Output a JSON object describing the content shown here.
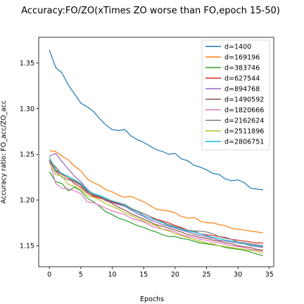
{
  "chart_data": {
    "type": "line",
    "title": "Accuracy:FO/ZO(xTimes ZO worse than FO,epoch 15-50)",
    "xlabel": "Epochs",
    "ylabel": "Accuracy ratio: FO_acc/ZO_acc",
    "xlim": [
      -1.7,
      35.7
    ],
    "ylim": [
      1.127,
      1.378
    ],
    "xticks": [
      "0",
      "5",
      "10",
      "15",
      "20",
      "25",
      "30",
      "35"
    ],
    "yticks": [
      "1.15",
      "1.20",
      "1.25",
      "1.30",
      "1.35"
    ],
    "legend_position": "top-right",
    "grid": false,
    "x": [
      0,
      1,
      2,
      3,
      4,
      5,
      6,
      7,
      8,
      9,
      10,
      11,
      12,
      13,
      14,
      15,
      16,
      17,
      18,
      19,
      20,
      21,
      22,
      23,
      24,
      25,
      26,
      27,
      28,
      29,
      30,
      31,
      32,
      33,
      34
    ],
    "series": [
      {
        "name": "d=1400",
        "color": "#1f77b4",
        "values": [
          1.364,
          1.345,
          1.339,
          1.326,
          1.316,
          1.306,
          1.302,
          1.297,
          1.289,
          1.282,
          1.277,
          1.276,
          1.277,
          1.27,
          1.266,
          1.263,
          1.259,
          1.255,
          1.253,
          1.25,
          1.251,
          1.245,
          1.243,
          1.238,
          1.236,
          1.233,
          1.229,
          1.228,
          1.223,
          1.221,
          1.222,
          1.219,
          1.213,
          1.212,
          1.211
        ]
      },
      {
        "name": "d=169196",
        "color": "#ff7f0e",
        "values": [
          1.254,
          1.253,
          1.248,
          1.244,
          1.237,
          1.232,
          1.223,
          1.219,
          1.216,
          1.211,
          1.209,
          1.205,
          1.203,
          1.204,
          1.201,
          1.198,
          1.194,
          1.19,
          1.189,
          1.188,
          1.186,
          1.182,
          1.18,
          1.181,
          1.177,
          1.175,
          1.175,
          1.173,
          1.172,
          1.169,
          1.168,
          1.167,
          1.166,
          1.165,
          1.164
        ]
      },
      {
        "name": "d=383746",
        "color": "#2ca02c",
        "values": [
          1.231,
          1.22,
          1.218,
          1.21,
          1.214,
          1.21,
          1.202,
          1.198,
          1.193,
          1.187,
          1.184,
          1.18,
          1.178,
          1.175,
          1.172,
          1.17,
          1.167,
          1.165,
          1.162,
          1.16,
          1.16,
          1.158,
          1.157,
          1.155,
          1.153,
          1.152,
          1.151,
          1.15,
          1.148,
          1.147,
          1.146,
          1.145,
          1.143,
          1.141,
          1.139
        ]
      },
      {
        "name": "d=627544",
        "color": "#d62728",
        "values": [
          1.244,
          1.232,
          1.228,
          1.224,
          1.218,
          1.214,
          1.208,
          1.204,
          1.202,
          1.2,
          1.198,
          1.196,
          1.194,
          1.19,
          1.187,
          1.185,
          1.182,
          1.179,
          1.177,
          1.175,
          1.172,
          1.17,
          1.167,
          1.166,
          1.163,
          1.162,
          1.161,
          1.16,
          1.159,
          1.157,
          1.156,
          1.155,
          1.154,
          1.153,
          1.153
        ]
      },
      {
        "name": "d=894768",
        "color": "#9467bd",
        "values": [
          1.248,
          1.251,
          1.242,
          1.234,
          1.226,
          1.22,
          1.212,
          1.206,
          1.203,
          1.199,
          1.197,
          1.195,
          1.193,
          1.189,
          1.185,
          1.182,
          1.178,
          1.176,
          1.173,
          1.171,
          1.169,
          1.167,
          1.165,
          1.163,
          1.161,
          1.16,
          1.158,
          1.156,
          1.155,
          1.154,
          1.153,
          1.152,
          1.15,
          1.149,
          1.148
        ]
      },
      {
        "name": "d=1490592",
        "color": "#8c564b",
        "values": [
          1.243,
          1.236,
          1.228,
          1.224,
          1.221,
          1.217,
          1.21,
          1.205,
          1.203,
          1.2,
          1.196,
          1.192,
          1.189,
          1.185,
          1.182,
          1.179,
          1.176,
          1.173,
          1.171,
          1.169,
          1.167,
          1.165,
          1.162,
          1.161,
          1.159,
          1.158,
          1.156,
          1.155,
          1.153,
          1.152,
          1.15,
          1.149,
          1.148,
          1.146,
          1.145
        ]
      },
      {
        "name": "d=1820666",
        "color": "#e377c2",
        "values": [
          1.243,
          1.218,
          1.213,
          1.212,
          1.21,
          1.207,
          1.198,
          1.197,
          1.194,
          1.191,
          1.188,
          1.186,
          1.184,
          1.18,
          1.178,
          1.176,
          1.172,
          1.17,
          1.168,
          1.167,
          1.165,
          1.162,
          1.16,
          1.159,
          1.157,
          1.156,
          1.154,
          1.153,
          1.151,
          1.15,
          1.149,
          1.148,
          1.146,
          1.145,
          1.144
        ]
      },
      {
        "name": "d=2162624",
        "color": "#7f7f7f",
        "values": [
          1.243,
          1.231,
          1.225,
          1.222,
          1.22,
          1.216,
          1.209,
          1.206,
          1.204,
          1.201,
          1.199,
          1.197,
          1.195,
          1.191,
          1.188,
          1.185,
          1.182,
          1.178,
          1.176,
          1.173,
          1.171,
          1.169,
          1.167,
          1.166,
          1.166,
          1.165,
          1.163,
          1.16,
          1.158,
          1.157,
          1.154,
          1.153,
          1.152,
          1.151,
          1.15
        ]
      },
      {
        "name": "d=2511896",
        "color": "#bcbd22",
        "values": [
          1.24,
          1.228,
          1.226,
          1.217,
          1.215,
          1.212,
          1.205,
          1.203,
          1.2,
          1.196,
          1.193,
          1.19,
          1.186,
          1.183,
          1.18,
          1.177,
          1.174,
          1.172,
          1.168,
          1.166,
          1.163,
          1.161,
          1.159,
          1.157,
          1.155,
          1.153,
          1.152,
          1.15,
          1.149,
          1.148,
          1.147,
          1.146,
          1.145,
          1.144,
          1.142
        ]
      },
      {
        "name": "d=2806751",
        "color": "#17becf",
        "values": [
          1.247,
          1.233,
          1.229,
          1.226,
          1.222,
          1.218,
          1.211,
          1.207,
          1.205,
          1.202,
          1.199,
          1.197,
          1.194,
          1.19,
          1.187,
          1.183,
          1.18,
          1.178,
          1.175,
          1.172,
          1.17,
          1.168,
          1.166,
          1.165,
          1.163,
          1.161,
          1.159,
          1.158,
          1.156,
          1.155,
          1.154,
          1.152,
          1.151,
          1.15,
          1.149
        ]
      }
    ]
  }
}
